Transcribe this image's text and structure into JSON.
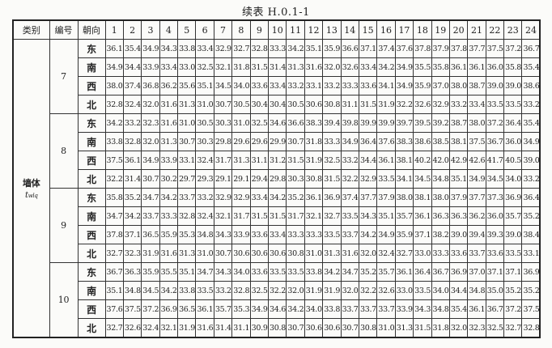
{
  "title": "续表 H.0.1-1",
  "headers": {
    "category": "类别",
    "number": "编号",
    "orientation": "朝向",
    "hours": [
      "1",
      "2",
      "3",
      "4",
      "5",
      "6",
      "7",
      "8",
      "9",
      "10",
      "11",
      "12",
      "13",
      "14",
      "15",
      "16",
      "17",
      "18",
      "19",
      "20",
      "21",
      "22",
      "23",
      "24"
    ]
  },
  "category": {
    "label": "墙体",
    "symbol": "t",
    "symbol_sub": "wlq"
  },
  "groups": [
    {
      "number": "7",
      "rows": [
        {
          "dir": "东",
          "values": [
            "36.1",
            "35.4",
            "34.9",
            "34.3",
            "33.8",
            "33.4",
            "32.9",
            "32.7",
            "32.8",
            "33.3",
            "34.2",
            "35.1",
            "35.9",
            "36.6",
            "37.1",
            "37.4",
            "37.6",
            "37.8",
            "37.9",
            "37.8",
            "37.7",
            "37.5",
            "37.2",
            "36.7"
          ]
        },
        {
          "dir": "南",
          "values": [
            "34.9",
            "34.4",
            "33.9",
            "33.4",
            "33.0",
            "32.5",
            "32.1",
            "31.8",
            "31.5",
            "31.4",
            "31.3",
            "31.6",
            "32.0",
            "32.6",
            "33.4",
            "34.2",
            "34.9",
            "35.5",
            "35.8",
            "36.1",
            "36.1",
            "36.0",
            "35.8",
            "35.4"
          ]
        },
        {
          "dir": "西",
          "values": [
            "38.0",
            "37.4",
            "36.8",
            "36.2",
            "35.6",
            "35.1",
            "34.5",
            "34.0",
            "33.6",
            "33.4",
            "33.2",
            "33.1",
            "33.2",
            "33.3",
            "33.6",
            "34.1",
            "34.9",
            "35.9",
            "37.0",
            "38.0",
            "38.7",
            "39.0",
            "39.0",
            "38.6"
          ]
        },
        {
          "dir": "北",
          "values": [
            "32.8",
            "32.4",
            "32.0",
            "31.6",
            "31.3",
            "31.0",
            "30.7",
            "30.5",
            "30.4",
            "30.4",
            "30.5",
            "30.6",
            "30.8",
            "31.1",
            "31.5",
            "31.9",
            "32.2",
            "32.6",
            "32.9",
            "33.2",
            "33.4",
            "33.5",
            "33.5",
            "33.2"
          ]
        }
      ]
    },
    {
      "number": "8",
      "rows": [
        {
          "dir": "东",
          "values": [
            "34.2",
            "33.2",
            "32.3",
            "31.6",
            "31.0",
            "30.5",
            "30.3",
            "31.0",
            "32.5",
            "34.6",
            "36.6",
            "38.3",
            "39.4",
            "39.8",
            "39.9",
            "39.9",
            "39.7",
            "39.5",
            "39.2",
            "38.7",
            "38.0",
            "37.2",
            "36.4",
            "35.4"
          ]
        },
        {
          "dir": "南",
          "values": [
            "33.8",
            "32.8",
            "32.0",
            "31.3",
            "30.7",
            "30.3",
            "29.8",
            "29.6",
            "29.6",
            "29.9",
            "30.7",
            "31.8",
            "33.3",
            "34.9",
            "36.4",
            "37.6",
            "38.3",
            "38.6",
            "38.5",
            "38.1",
            "37.5",
            "36.7",
            "36.0",
            "34.9"
          ]
        },
        {
          "dir": "西",
          "values": [
            "37.5",
            "36.1",
            "34.9",
            "33.9",
            "33.1",
            "32.4",
            "31.7",
            "31.3",
            "31.1",
            "31.2",
            "31.5",
            "31.9",
            "32.5",
            "33.2",
            "34.4",
            "36.1",
            "38.1",
            "40.2",
            "42.0",
            "42.9",
            "42.6",
            "41.7",
            "40.5",
            "39.0"
          ]
        },
        {
          "dir": "北",
          "values": [
            "32.2",
            "31.4",
            "30.7",
            "30.2",
            "29.7",
            "29.3",
            "29.1",
            "29.1",
            "29.4",
            "29.8",
            "30.3",
            "30.8",
            "31.5",
            "32.2",
            "32.9",
            "33.5",
            "34.1",
            "34.5",
            "34.8",
            "35.1",
            "34.9",
            "34.5",
            "34.0",
            "33.2"
          ]
        }
      ]
    },
    {
      "number": "9",
      "rows": [
        {
          "dir": "东",
          "values": [
            "35.8",
            "35.2",
            "34.7",
            "34.2",
            "33.7",
            "33.2",
            "32.9",
            "32.9",
            "33.4",
            "34.2",
            "35.2",
            "36.1",
            "36.9",
            "37.4",
            "37.7",
            "37.9",
            "38.0",
            "38.1",
            "38.0",
            "37.9",
            "37.7",
            "37.3",
            "36.9",
            "36.4"
          ]
        },
        {
          "dir": "南",
          "values": [
            "34.7",
            "34.2",
            "33.7",
            "33.3",
            "32.8",
            "32.4",
            "32.1",
            "31.7",
            "31.5",
            "31.5",
            "31.7",
            "32.1",
            "32.7",
            "33.5",
            "34.3",
            "35.1",
            "35.7",
            "36.1",
            "36.3",
            "36.3",
            "36.2",
            "36.0",
            "35.7",
            "35.2"
          ]
        },
        {
          "dir": "西",
          "values": [
            "37.8",
            "37.1",
            "36.5",
            "35.9",
            "35.3",
            "34.8",
            "34.3",
            "33.9",
            "33.6",
            "33.4",
            "33.3",
            "33.3",
            "33.5",
            "33.7",
            "34.2",
            "34.9",
            "35.9",
            "37.1",
            "38.2",
            "39.0",
            "39.4",
            "39.3",
            "39.0",
            "38.4"
          ]
        },
        {
          "dir": "北",
          "values": [
            "32.7",
            "32.3",
            "31.9",
            "31.6",
            "31.3",
            "31.0",
            "30.7",
            "30.6",
            "30.6",
            "30.6",
            "30.8",
            "31.0",
            "31.3",
            "31.6",
            "32.0",
            "32.4",
            "32.7",
            "33.0",
            "33.3",
            "33.6",
            "33.7",
            "33.6",
            "33.5",
            "33.1"
          ]
        }
      ]
    },
    {
      "number": "10",
      "rows": [
        {
          "dir": "东",
          "values": [
            "36.7",
            "36.3",
            "35.9",
            "35.5",
            "35.1",
            "34.7",
            "34.3",
            "34.0",
            "33.6",
            "33.5",
            "33.5",
            "33.8",
            "34.2",
            "34.7",
            "35.2",
            "35.7",
            "36.1",
            "36.4",
            "36.7",
            "36.9",
            "37.0",
            "37.1",
            "37.1",
            "36.9"
          ]
        },
        {
          "dir": "南",
          "values": [
            "35.1",
            "34.8",
            "34.5",
            "34.2",
            "33.8",
            "33.5",
            "33.2",
            "32.8",
            "32.5",
            "32.2",
            "32.0",
            "31.9",
            "31.9",
            "32.0",
            "32.2",
            "32.6",
            "33.0",
            "33.5",
            "34.0",
            "34.4",
            "34.8",
            "35.0",
            "35.2",
            "35.2"
          ]
        },
        {
          "dir": "西",
          "values": [
            "37.6",
            "37.5",
            "37.2",
            "36.9",
            "36.5",
            "36.1",
            "35.7",
            "35.3",
            "34.9",
            "34.6",
            "34.2",
            "34.0",
            "33.8",
            "33.7",
            "33.7",
            "33.7",
            "33.9",
            "34.3",
            "34.8",
            "35.4",
            "36.1",
            "36.7",
            "37.2",
            "37.5"
          ]
        },
        {
          "dir": "北",
          "values": [
            "32.7",
            "32.6",
            "32.4",
            "32.1",
            "31.9",
            "31.6",
            "31.4",
            "31.1",
            "30.9",
            "30.8",
            "30.7",
            "30.6",
            "30.6",
            "30.7",
            "30.8",
            "31.0",
            "31.3",
            "31.5",
            "31.8",
            "32.0",
            "32.3",
            "32.5",
            "32.7",
            "32.8"
          ]
        }
      ]
    }
  ]
}
